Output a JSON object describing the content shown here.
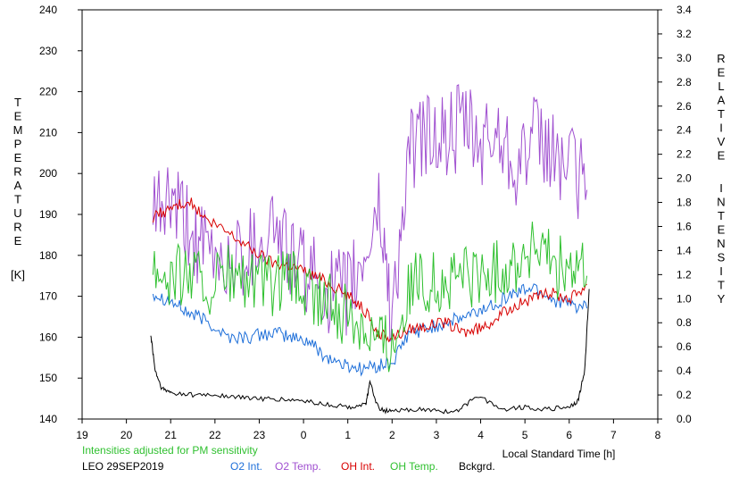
{
  "chart_data": {
    "type": "line",
    "title": "",
    "xlabel": "Local Standard Time [h]",
    "ylabel_left": "TEMPERATURE [K]",
    "ylabel_right": "RELATIVE INTENSITY",
    "ylabel_left_letters": [
      "T",
      "E",
      "M",
      "P",
      "E",
      "R",
      "A",
      "T",
      "U",
      "R",
      "E"
    ],
    "ylabel_left_unit": "[K]",
    "ylabel_right_letters": [
      "R",
      "E",
      "L",
      "A",
      "T",
      "I",
      "V",
      "E"
    ],
    "ylabel_right_letters2": [
      "I",
      "N",
      "T",
      "E",
      "N",
      "S",
      "I",
      "T",
      "Y"
    ],
    "xlim": [
      19,
      32
    ],
    "x_ticks": [
      19,
      20,
      21,
      22,
      23,
      24,
      25,
      26,
      27,
      28,
      29,
      30,
      31,
      32
    ],
    "x_tick_labels": [
      "19",
      "20",
      "21",
      "22",
      "23",
      "0",
      "1",
      "2",
      "3",
      "4",
      "5",
      "6",
      "7",
      "8"
    ],
    "ylim_left": [
      140,
      240
    ],
    "y_left_ticks": [
      140,
      150,
      160,
      170,
      180,
      190,
      200,
      210,
      220,
      230,
      240
    ],
    "ylim_right": [
      0.0,
      3.4
    ],
    "y_right_ticks": [
      "0.0",
      "0.2",
      "0.4",
      "0.6",
      "0.8",
      "1.0",
      "1.2",
      "1.4",
      "1.6",
      "1.8",
      "2.0",
      "2.2",
      "2.4",
      "2.6",
      "2.8",
      "3.0",
      "3.2",
      "3.4"
    ],
    "grid": false,
    "note": "Intensities adjusted for PM sensitivity",
    "station": "LEO 29SEP2019",
    "colors": {
      "o2_int": "#1e6fd9",
      "o2_temp": "#a050d0",
      "oh_int": "#d80000",
      "oh_temp": "#30c030",
      "bckgrd": "#000000",
      "note": "#30c030"
    },
    "series": [
      {
        "name": "O2 Int.",
        "axis": "right",
        "color": "#1e6fd9",
        "x": [
          20.6,
          21.0,
          21.4,
          21.8,
          22.3,
          22.8,
          23.3,
          23.7,
          24.1,
          24.5,
          24.9,
          25.3,
          25.7,
          26.0,
          26.4,
          26.8,
          27.2,
          27.6,
          28.0,
          28.4,
          28.8,
          29.2,
          29.6,
          30.0,
          30.4
        ],
        "values": [
          1.05,
          0.98,
          0.88,
          0.82,
          0.68,
          0.68,
          0.72,
          0.68,
          0.65,
          0.52,
          0.45,
          0.42,
          0.44,
          0.46,
          0.72,
          0.75,
          0.8,
          0.84,
          0.9,
          0.98,
          1.05,
          1.1,
          1.0,
          0.95,
          0.92
        ]
      },
      {
        "name": "O2 Temp.",
        "axis": "left",
        "color": "#a050d0",
        "x": [
          20.6,
          21.0,
          21.4,
          21.8,
          22.3,
          22.8,
          23.3,
          23.7,
          24.1,
          24.5,
          24.9,
          25.3,
          25.7,
          26.0,
          26.4,
          26.8,
          27.2,
          27.6,
          28.0,
          28.4,
          28.8,
          29.2,
          29.6,
          30.0,
          30.4
        ],
        "values": [
          190,
          193,
          186,
          180,
          178,
          182,
          188,
          180,
          175,
          172,
          170,
          176,
          192,
          165,
          205,
          210,
          208,
          212,
          206,
          210,
          203,
          208,
          205,
          202,
          196
        ]
      },
      {
        "name": "OH Int.",
        "axis": "right",
        "color": "#d80000",
        "x": [
          20.6,
          21.0,
          21.4,
          21.8,
          22.3,
          22.8,
          23.3,
          23.7,
          24.1,
          24.5,
          24.9,
          25.3,
          25.7,
          26.0,
          26.4,
          26.8,
          27.2,
          27.6,
          28.0,
          28.4,
          28.8,
          29.2,
          29.6,
          30.0,
          30.4
        ],
        "values": [
          1.68,
          1.75,
          1.82,
          1.65,
          1.55,
          1.42,
          1.3,
          1.28,
          1.22,
          1.15,
          1.05,
          0.95,
          0.7,
          0.68,
          0.75,
          0.78,
          0.8,
          0.72,
          0.75,
          0.85,
          0.95,
          1.0,
          1.05,
          1.0,
          1.12
        ]
      },
      {
        "name": "OH Temp.",
        "axis": "left",
        "color": "#30c030",
        "x": [
          20.6,
          21.0,
          21.4,
          21.8,
          22.3,
          22.8,
          23.3,
          23.7,
          24.1,
          24.5,
          24.9,
          25.3,
          25.7,
          26.0,
          26.4,
          26.8,
          27.2,
          27.6,
          28.0,
          28.4,
          28.8,
          29.2,
          29.6,
          30.0,
          30.4
        ],
        "values": [
          178,
          175,
          176,
          172,
          175,
          173,
          172,
          174,
          170,
          168,
          166,
          164,
          160,
          158,
          172,
          174,
          172,
          176,
          174,
          176,
          178,
          182,
          178,
          176,
          175
        ]
      },
      {
        "name": "Bckgrd.",
        "axis": "right",
        "color": "#000000",
        "x": [
          20.55,
          20.65,
          20.8,
          21.0,
          21.5,
          22.0,
          22.5,
          23.0,
          23.5,
          24.0,
          24.5,
          25.0,
          25.4,
          25.5,
          25.7,
          26.0,
          26.5,
          27.0,
          27.5,
          27.9,
          28.5,
          29.0,
          29.5,
          30.0,
          30.2,
          30.35,
          30.45
        ],
        "values": [
          0.7,
          0.4,
          0.25,
          0.22,
          0.2,
          0.2,
          0.18,
          0.17,
          0.16,
          0.15,
          0.12,
          0.1,
          0.12,
          0.3,
          0.08,
          0.06,
          0.08,
          0.07,
          0.06,
          0.2,
          0.08,
          0.1,
          0.08,
          0.1,
          0.15,
          0.4,
          1.08
        ]
      }
    ]
  }
}
